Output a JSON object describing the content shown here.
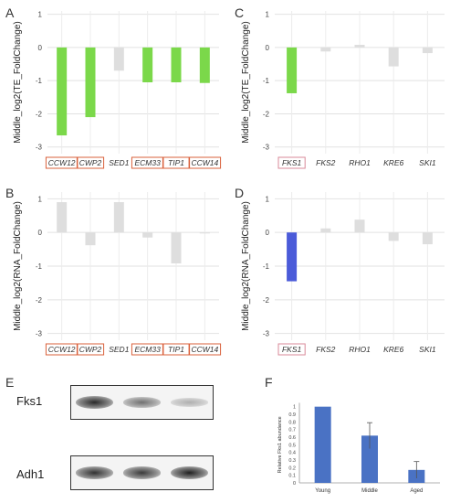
{
  "panels": {
    "A": "A",
    "B": "B",
    "C": "C",
    "D": "D",
    "E": "E",
    "F": "F"
  },
  "colors": {
    "green": "#7bd84a",
    "blue": "#4b5bd9",
    "gray": "#dedede",
    "bar_f": "#4a72c4",
    "highlight_box": "#d9603b",
    "highlight_box_pink": "#d98a99"
  },
  "chart_data": [
    {
      "id": "A",
      "type": "bar",
      "ylabel": "Middle_log2(TE_FoldChange)",
      "ylim": [
        -3.2,
        1.1
      ],
      "yticks": [
        1,
        0,
        -1,
        -2,
        -3
      ],
      "grid": true,
      "categories": [
        "CCW12",
        "CWP2",
        "SED1",
        "ECM33",
        "TIP1",
        "CCW14"
      ],
      "boxed": [
        true,
        true,
        false,
        true,
        true,
        true
      ],
      "values": [
        -2.65,
        -2.1,
        -0.7,
        -1.05,
        -1.05,
        -1.07
      ],
      "bar_colors": [
        "green",
        "green",
        "gray",
        "green",
        "green",
        "green"
      ]
    },
    {
      "id": "B",
      "type": "bar",
      "ylabel": "Middle_log2(RNA_FoldChange)",
      "ylim": [
        -3.2,
        1.2
      ],
      "yticks": [
        1,
        0,
        -1,
        -2,
        -3
      ],
      "grid": true,
      "categories": [
        "CCW12",
        "CWP2",
        "SED1",
        "ECM33",
        "TIP1",
        "CCW14"
      ],
      "boxed": [
        true,
        true,
        false,
        true,
        true,
        true
      ],
      "values": [
        0.9,
        -0.38,
        0.9,
        -0.15,
        -0.92,
        -0.03
      ],
      "bar_colors": [
        "gray",
        "gray",
        "gray",
        "gray",
        "gray",
        "gray"
      ]
    },
    {
      "id": "C",
      "type": "bar",
      "ylabel": "Middle_log2(TE_FoldChange)",
      "ylim": [
        -3.2,
        1.1
      ],
      "yticks": [
        1,
        0,
        -1,
        -2,
        -3
      ],
      "grid": true,
      "categories": [
        "FKS1",
        "FKS2",
        "RHO1",
        "KRE6",
        "SKI1"
      ],
      "boxed": [
        true,
        false,
        false,
        false,
        false
      ],
      "values": [
        -1.38,
        -0.12,
        0.08,
        -0.57,
        -0.17
      ],
      "bar_colors": [
        "green",
        "gray",
        "gray",
        "gray",
        "gray"
      ]
    },
    {
      "id": "D",
      "type": "bar",
      "ylabel": "Middle_log2(RNA_FoldChange)",
      "ylim": [
        -3.2,
        1.2
      ],
      "yticks": [
        1,
        0,
        -1,
        -2,
        -3
      ],
      "grid": true,
      "categories": [
        "FKS1",
        "FKS2",
        "RHO1",
        "KRE6",
        "SKI1"
      ],
      "boxed": [
        true,
        false,
        false,
        false,
        false
      ],
      "values": [
        -1.45,
        0.12,
        0.38,
        -0.25,
        -0.35
      ],
      "bar_colors": [
        "blue",
        "gray",
        "gray",
        "gray",
        "gray"
      ]
    },
    {
      "id": "F",
      "type": "bar",
      "ylabel": "Relative Fks1 abundance",
      "ylim": [
        0,
        1.2
      ],
      "yticks": [
        0,
        0.1,
        0.2,
        0.3,
        0.4,
        0.5,
        0.6,
        0.7,
        0.8,
        0.9,
        1
      ],
      "ytick_labels": [
        "0",
        "0.1",
        "0.2",
        "0.3",
        "0.4",
        "0.5",
        "0.6",
        "0.7",
        "0.8",
        "0.9",
        "1"
      ],
      "grid": false,
      "categories": [
        "Young",
        "Middle",
        "Aged"
      ],
      "values": [
        1.0,
        0.62,
        0.17
      ],
      "errors": [
        0,
        0.17,
        0.11
      ]
    }
  ],
  "blot": {
    "rows": [
      {
        "label": "Fks1",
        "bands": [
          0.95,
          0.55,
          0.2
        ]
      },
      {
        "label": "Adh1",
        "bands": [
          0.9,
          0.85,
          1.0
        ]
      }
    ]
  }
}
